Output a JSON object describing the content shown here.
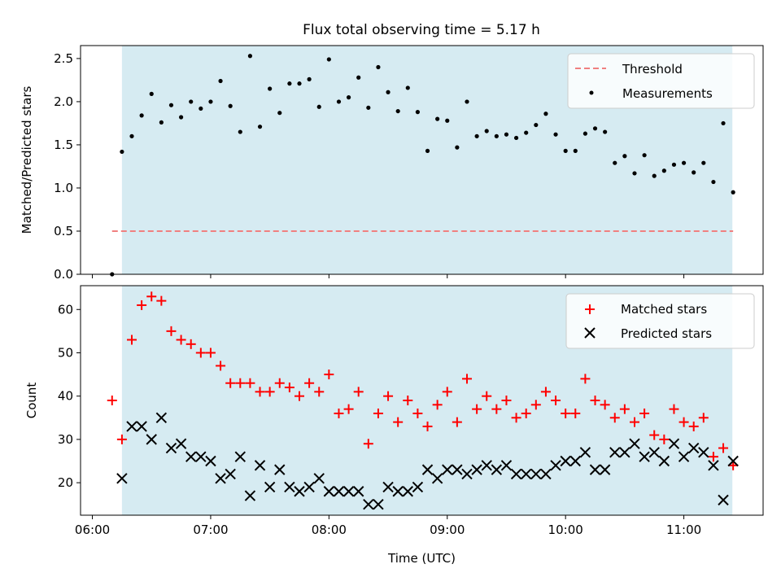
{
  "figure": {
    "title": "Flux total observing time = 5.17 h"
  },
  "chart_data": [
    {
      "type": "scatter",
      "ylabel": "Matched/Predicted stars",
      "ylim": [
        0,
        2.65
      ],
      "xlim_hours": [
        5.9,
        11.67
      ],
      "yticks": [
        {
          "v": 0.0,
          "label": "0.0"
        },
        {
          "v": 0.5,
          "label": "0.5"
        },
        {
          "v": 1.0,
          "label": "1.0"
        },
        {
          "v": 1.5,
          "label": "1.5"
        },
        {
          "v": 2.0,
          "label": "2.0"
        },
        {
          "v": 2.5,
          "label": "2.5"
        }
      ],
      "shaded_region_hours": [
        6.25,
        11.41
      ],
      "threshold": {
        "name": "Threshold",
        "value": 0.5,
        "color": "#f08080"
      },
      "legend_position": "top-right",
      "series": [
        {
          "name": "Measurements",
          "marker": "dot",
          "color": "#000000",
          "x": [
            "06:10",
            "06:15",
            "06:20",
            "06:25",
            "06:30",
            "06:35",
            "06:40",
            "06:45",
            "06:50",
            "06:55",
            "07:00",
            "07:05",
            "07:10",
            "07:15",
            "07:20",
            "07:25",
            "07:30",
            "07:35",
            "07:40",
            "07:45",
            "07:50",
            "07:55",
            "08:00",
            "08:05",
            "08:10",
            "08:15",
            "08:20",
            "08:25",
            "08:30",
            "08:35",
            "08:40",
            "08:45",
            "08:50",
            "08:55",
            "09:00",
            "09:05",
            "09:10",
            "09:15",
            "09:20",
            "09:25",
            "09:30",
            "09:35",
            "09:40",
            "09:45",
            "09:50",
            "09:55",
            "10:00",
            "10:05",
            "10:10",
            "10:15",
            "10:20",
            "10:25",
            "10:30",
            "10:35",
            "10:40",
            "10:45",
            "10:50",
            "10:55",
            "11:00",
            "11:05",
            "11:10",
            "11:15",
            "11:20",
            "11:25"
          ],
          "y": [
            0.0,
            1.42,
            1.6,
            1.84,
            2.09,
            1.76,
            1.96,
            1.82,
            2.0,
            1.92,
            2.0,
            2.24,
            1.95,
            1.65,
            2.53,
            1.71,
            2.15,
            1.87,
            2.21,
            2.21,
            2.26,
            1.94,
            2.49,
            2.0,
            2.05,
            2.28,
            1.93,
            2.4,
            2.11,
            1.89,
            2.16,
            1.88,
            1.43,
            1.8,
            1.78,
            1.47,
            2.0,
            1.6,
            1.66,
            1.6,
            1.62,
            1.58,
            1.64,
            1.73,
            1.86,
            1.62,
            1.43,
            1.43,
            1.63,
            1.69,
            1.65,
            1.29,
            1.37,
            1.17,
            1.38,
            1.14,
            1.2,
            1.27,
            1.29,
            1.18,
            1.29,
            1.07,
            1.75,
            0.95
          ]
        }
      ]
    },
    {
      "type": "scatter",
      "xlabel": "Time (UTC)",
      "ylabel": "Count",
      "ylim": [
        12.5,
        65.5
      ],
      "xlim_hours": [
        5.9,
        11.67
      ],
      "yticks": [
        {
          "v": 20,
          "label": "20"
        },
        {
          "v": 30,
          "label": "30"
        },
        {
          "v": 40,
          "label": "40"
        },
        {
          "v": 50,
          "label": "50"
        },
        {
          "v": 60,
          "label": "60"
        }
      ],
      "xticks": [
        {
          "v": 6,
          "label": "06:00"
        },
        {
          "v": 7,
          "label": "07:00"
        },
        {
          "v": 8,
          "label": "08:00"
        },
        {
          "v": 9,
          "label": "09:00"
        },
        {
          "v": 10,
          "label": "10:00"
        },
        {
          "v": 11,
          "label": "11:00"
        }
      ],
      "shaded_region_hours": [
        6.25,
        11.41
      ],
      "legend_position": "top-right",
      "series": [
        {
          "name": "Matched stars",
          "marker": "plus",
          "color": "#ff0000",
          "x": [
            "06:10",
            "06:15",
            "06:20",
            "06:25",
            "06:30",
            "06:35",
            "06:40",
            "06:45",
            "06:50",
            "06:55",
            "07:00",
            "07:05",
            "07:10",
            "07:15",
            "07:20",
            "07:25",
            "07:30",
            "07:35",
            "07:40",
            "07:45",
            "07:50",
            "07:55",
            "08:00",
            "08:05",
            "08:10",
            "08:15",
            "08:20",
            "08:25",
            "08:30",
            "08:35",
            "08:40",
            "08:45",
            "08:50",
            "08:55",
            "09:00",
            "09:05",
            "09:10",
            "09:15",
            "09:20",
            "09:25",
            "09:30",
            "09:35",
            "09:40",
            "09:45",
            "09:50",
            "09:55",
            "10:00",
            "10:05",
            "10:10",
            "10:15",
            "10:20",
            "10:25",
            "10:30",
            "10:35",
            "10:40",
            "10:45",
            "10:50",
            "10:55",
            "11:00",
            "11:05",
            "11:10",
            "11:15",
            "11:20",
            "11:25"
          ],
          "y": [
            39,
            30,
            53,
            61,
            63,
            62,
            55,
            53,
            52,
            50,
            50,
            47,
            43,
            43,
            43,
            41,
            41,
            43,
            42,
            40,
            43,
            41,
            45,
            36,
            37,
            41,
            29,
            36,
            40,
            34,
            39,
            36,
            33,
            38,
            41,
            34,
            44,
            37,
            40,
            37,
            39,
            35,
            36,
            38,
            41,
            39,
            36,
            36,
            44,
            39,
            38,
            35,
            37,
            34,
            36,
            31,
            30,
            37,
            34,
            33,
            35,
            26,
            28,
            24
          ]
        },
        {
          "name": "Predicted stars",
          "marker": "x",
          "color": "#000000",
          "x": [
            "06:15",
            "06:20",
            "06:25",
            "06:30",
            "06:35",
            "06:40",
            "06:45",
            "06:50",
            "06:55",
            "07:00",
            "07:05",
            "07:10",
            "07:15",
            "07:20",
            "07:25",
            "07:30",
            "07:35",
            "07:40",
            "07:45",
            "07:50",
            "07:55",
            "08:00",
            "08:05",
            "08:10",
            "08:15",
            "08:20",
            "08:25",
            "08:30",
            "08:35",
            "08:40",
            "08:45",
            "08:50",
            "08:55",
            "09:00",
            "09:05",
            "09:10",
            "09:15",
            "09:20",
            "09:25",
            "09:30",
            "09:35",
            "09:40",
            "09:45",
            "09:50",
            "09:55",
            "10:00",
            "10:05",
            "10:10",
            "10:15",
            "10:20",
            "10:25",
            "10:30",
            "10:35",
            "10:40",
            "10:45",
            "10:50",
            "10:55",
            "11:00",
            "11:05",
            "11:10",
            "11:15",
            "11:20",
            "11:25"
          ],
          "y": [
            21,
            33,
            33,
            30,
            35,
            28,
            29,
            26,
            26,
            25,
            21,
            22,
            26,
            17,
            24,
            19,
            23,
            19,
            18,
            19,
            21,
            18,
            18,
            18,
            18,
            15,
            15,
            19,
            18,
            18,
            19,
            23,
            21,
            23,
            23,
            22,
            23,
            24,
            23,
            24,
            22,
            22,
            22,
            22,
            24,
            25,
            25,
            27,
            23,
            23,
            27,
            27,
            29,
            26,
            27,
            25,
            29,
            26,
            28,
            27,
            24,
            16,
            25
          ]
        }
      ]
    }
  ]
}
